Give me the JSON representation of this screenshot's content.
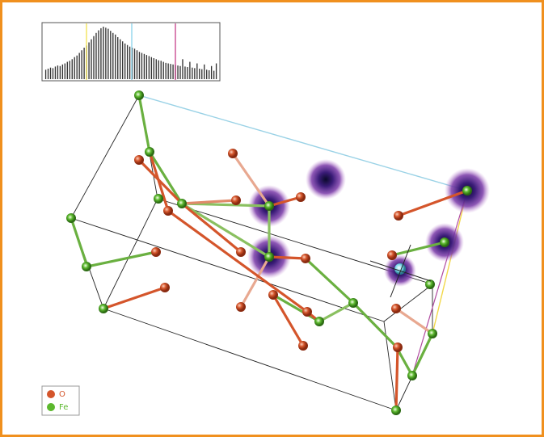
{
  "histogram": {
    "values": [
      18,
      20,
      22,
      21,
      24,
      26,
      25,
      28,
      30,
      33,
      35,
      38,
      42,
      45,
      50,
      55,
      60,
      64,
      70,
      76,
      82,
      88,
      93,
      97,
      100,
      98,
      96,
      92,
      88,
      85,
      80,
      76,
      72,
      68,
      65,
      62,
      60,
      58,
      55,
      52,
      50,
      48,
      46,
      44,
      42,
      40,
      38,
      36,
      35,
      33,
      31,
      30,
      29,
      28,
      27,
      26,
      25,
      38,
      24,
      23,
      33,
      22,
      21,
      30,
      20,
      19,
      28,
      18,
      17,
      25,
      16,
      30
    ],
    "ylim": [
      0,
      100
    ]
  },
  "legend": {
    "items": [
      {
        "label": "O",
        "color": "#d4552b"
      },
      {
        "label": "Fe",
        "color": "#5cb82e"
      }
    ]
  }
}
